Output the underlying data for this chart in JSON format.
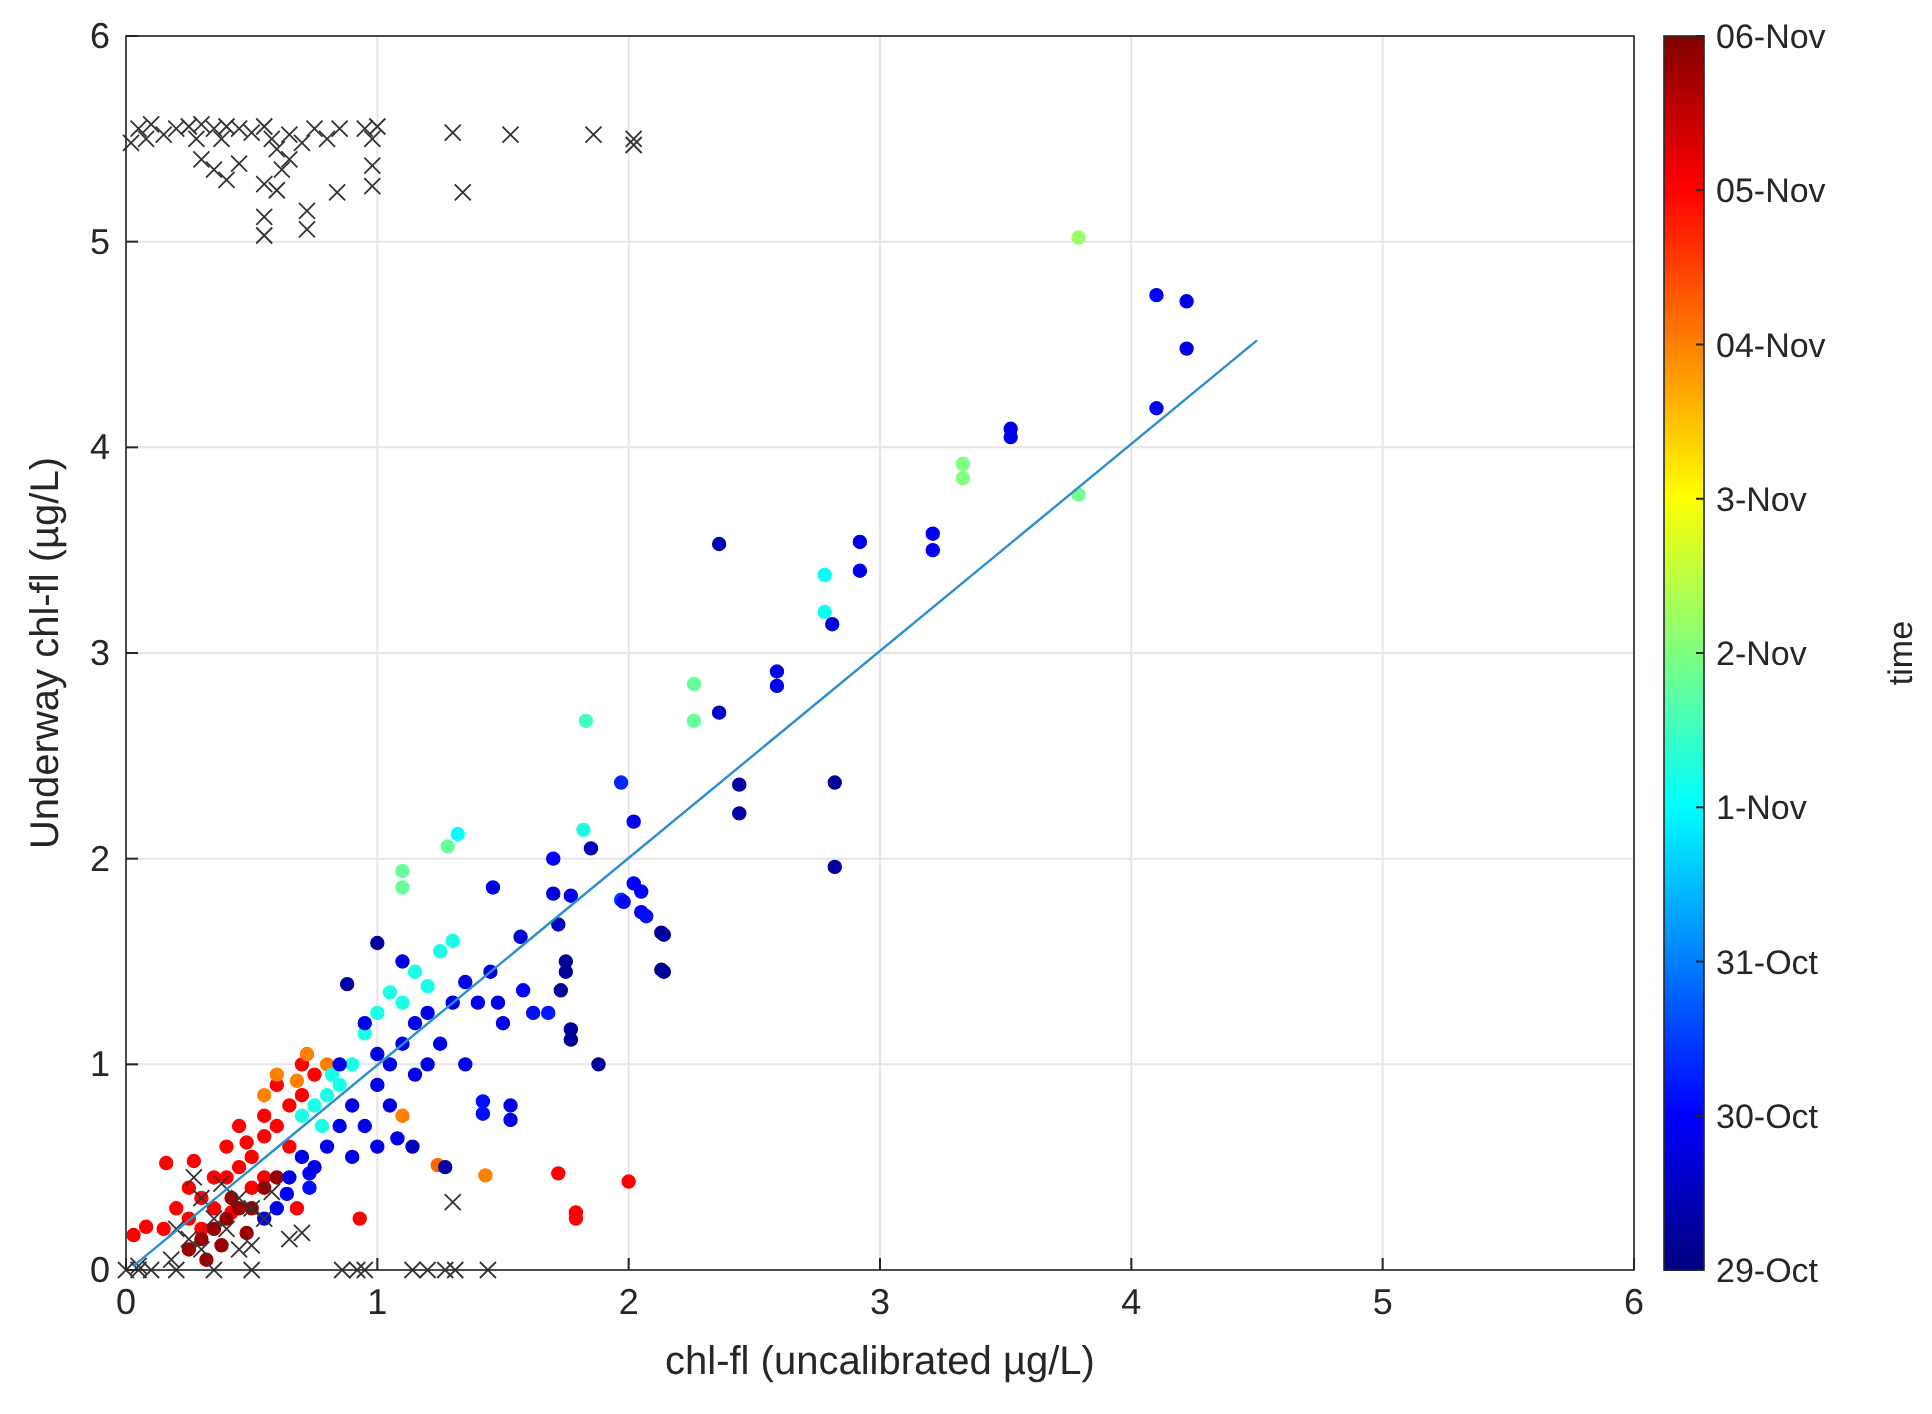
{
  "chart_data": {
    "type": "scatter",
    "xlabel": "chl-fl (uncalibrated µg/L)",
    "ylabel": "Underway chl-fl (µg/L)",
    "clabel": "time",
    "xlim": [
      0,
      6
    ],
    "ylim": [
      0,
      6
    ],
    "xticks": [
      0,
      1,
      2,
      3,
      4,
      5,
      6
    ],
    "yticks": [
      0,
      1,
      2,
      3,
      4,
      5,
      6
    ],
    "grid": true,
    "clim": [
      0,
      8
    ],
    "cticks": [
      {
        "value": 0,
        "label": "29-Oct"
      },
      {
        "value": 1,
        "label": "30-Oct"
      },
      {
        "value": 2,
        "label": "31-Oct"
      },
      {
        "value": 3,
        "label": "1-Nov"
      },
      {
        "value": 4,
        "label": "2-Nov"
      },
      {
        "value": 5,
        "label": "3-Nov"
      },
      {
        "value": 6,
        "label": "04-Nov"
      },
      {
        "value": 7,
        "label": "05-Nov"
      },
      {
        "value": 8,
        "label": "06-Nov"
      }
    ],
    "series": [
      {
        "marker": "circle",
        "x": [
          3.79,
          4.1,
          4.22,
          4.22,
          4.1,
          3.52,
          3.52,
          3.33,
          3.33,
          3.79,
          3.21,
          3.21,
          2.92,
          2.92,
          2.36,
          2.78,
          2.78,
          2.81,
          2.26,
          2.26,
          2.59,
          2.59,
          2.36,
          2.44,
          2.44,
          2.82,
          2.82,
          1.97,
          2.02,
          2.02,
          1.97,
          2.05,
          2.05,
          2.14,
          1.83,
          1.82,
          1.32,
          1.28,
          1.1,
          1.1,
          1.85,
          1.7,
          2.14,
          1.0,
          0.88,
          1.46,
          1.7,
          1.77,
          1.57,
          1.72,
          1.98,
          2.07,
          2.13,
          2.13,
          1.75,
          1.75,
          1.73,
          1.77,
          1.77,
          1.88,
          1.68,
          1.62,
          1.58,
          1.48,
          1.42,
          1.42,
          1.53,
          1.53,
          1.72,
          2.0,
          1.79,
          1.79,
          1.43,
          1.24,
          1.27,
          1.1,
          1.14,
          1.08,
          0.93,
          0.68,
          0.73,
          0.73,
          0.64,
          0.27,
          0.16,
          0.03,
          0.08,
          0.15,
          0.25,
          0.3,
          0.35,
          0.4,
          0.45,
          0.5,
          0.55,
          0.6,
          0.65,
          0.7,
          0.4,
          0.45,
          0.55,
          0.6,
          0.35,
          0.3,
          0.5,
          0.65,
          0.7,
          0.2,
          0.25,
          0.55,
          0.75,
          0.42,
          0.48,
          0.25,
          0.3,
          0.35,
          0.4,
          0.45,
          0.5,
          0.55,
          0.38,
          0.48,
          0.42,
          0.6,
          0.32,
          0.72,
          0.6,
          0.8,
          0.68,
          0.55,
          0.75,
          0.7,
          0.8,
          0.85,
          0.95,
          1.0,
          1.05,
          1.15,
          1.25,
          1.3,
          1.1,
          0.9,
          1.2,
          0.78,
          0.82,
          0.8,
          0.85,
          0.9,
          0.95,
          1.0,
          1.05,
          1.1,
          1.15,
          1.2,
          1.25,
          1.3,
          1.35,
          1.4,
          0.9,
          1.0,
          0.75,
          0.7,
          0.65,
          1.05,
          1.15,
          1.2,
          1.1,
          1.0,
          0.85,
          0.95,
          1.45,
          1.5,
          1.35,
          0.6,
          0.55
        ],
        "values": [
          5.02,
          4.74,
          4.71,
          4.48,
          4.19,
          4.09,
          4.05,
          3.92,
          3.85,
          3.77,
          3.58,
          3.5,
          3.54,
          3.4,
          3.53,
          3.38,
          3.2,
          3.14,
          2.85,
          2.67,
          2.91,
          2.84,
          2.71,
          2.36,
          2.22,
          2.37,
          1.96,
          2.37,
          2.18,
          1.88,
          1.8,
          1.84,
          1.74,
          1.63,
          2.67,
          2.14,
          2.12,
          2.06,
          1.94,
          1.86,
          2.05,
          2.0,
          1.45,
          1.59,
          1.39,
          1.86,
          1.83,
          1.82,
          1.62,
          1.68,
          1.79,
          1.72,
          1.64,
          1.46,
          1.5,
          1.45,
          1.36,
          1.17,
          1.12,
          1.0,
          1.25,
          1.25,
          1.36,
          1.3,
          0.82,
          0.76,
          0.8,
          0.73,
          0.47,
          0.43,
          0.25,
          0.28,
          0.46,
          0.51,
          0.5,
          0.75,
          0.6,
          0.64,
          0.25,
          0.3,
          0.47,
          0.4,
          0.37,
          0.53,
          0.52,
          0.17,
          0.21,
          0.2,
          0.25,
          0.35,
          0.3,
          0.45,
          0.5,
          0.55,
          0.65,
          0.7,
          0.8,
          0.85,
          0.6,
          0.7,
          0.75,
          0.9,
          0.45,
          0.2,
          0.4,
          0.6,
          1.0,
          0.3,
          0.4,
          0.45,
          0.95,
          0.28,
          0.62,
          0.1,
          0.15,
          0.2,
          0.25,
          0.3,
          0.3,
          0.4,
          0.12,
          0.18,
          0.35,
          0.45,
          0.05,
          1.05,
          0.95,
          1.0,
          0.92,
          0.85,
          0.8,
          0.75,
          0.85,
          0.9,
          1.15,
          1.25,
          1.35,
          1.45,
          1.55,
          1.6,
          1.3,
          1.0,
          1.38,
          0.7,
          0.95,
          0.6,
          0.7,
          0.8,
          0.7,
          0.9,
          1.0,
          1.1,
          1.2,
          1.25,
          1.1,
          1.3,
          1.4,
          1.3,
          0.55,
          0.6,
          0.5,
          0.55,
          0.45,
          0.8,
          0.95,
          1.0,
          1.5,
          1.05,
          1.0,
          1.2,
          1.45,
          1.2,
          1.0,
          0.3,
          0.25
        ],
        "cvalues": [
          4.2,
          1.0,
          0.8,
          0.8,
          0.9,
          0.8,
          0.8,
          4.0,
          4.0,
          3.9,
          0.9,
          0.9,
          0.8,
          0.8,
          0.4,
          3.0,
          3.1,
          0.7,
          3.8,
          3.8,
          0.8,
          0.8,
          0.6,
          0.3,
          0.3,
          0.2,
          0.2,
          1.3,
          0.9,
          0.9,
          1.4,
          1.0,
          1.0,
          0.2,
          3.5,
          3.2,
          3.0,
          3.8,
          3.8,
          3.8,
          0.5,
          1.0,
          0.2,
          0.2,
          0.3,
          0.8,
          0.7,
          0.8,
          0.7,
          0.5,
          1.0,
          1.1,
          0.2,
          0.2,
          0.2,
          0.2,
          0.2,
          0.2,
          0.2,
          0.2,
          1.2,
          1.1,
          1.0,
          0.8,
          1.1,
          1.1,
          0.8,
          0.8,
          7.0,
          7.0,
          7.0,
          7.0,
          6.0,
          6.2,
          0.3,
          6.0,
          0.5,
          0.8,
          7.0,
          7.0,
          1.0,
          1.1,
          1.0,
          7.0,
          7.0,
          7.0,
          7.0,
          7.0,
          7.0,
          7.0,
          7.0,
          7.0,
          7.0,
          7.0,
          7.0,
          7.0,
          7.0,
          7.0,
          7.0,
          7.0,
          7.0,
          7.0,
          7.0,
          7.0,
          7.0,
          7.0,
          7.0,
          7.0,
          7.0,
          7.0,
          7.0,
          7.0,
          7.0,
          7.8,
          7.8,
          7.8,
          7.8,
          7.8,
          7.8,
          7.8,
          7.8,
          7.8,
          7.8,
          7.8,
          7.8,
          6.0,
          6.0,
          6.0,
          6.0,
          6.0,
          3.2,
          3.2,
          3.2,
          3.2,
          3.2,
          3.2,
          3.2,
          3.2,
          3.2,
          3.2,
          3.2,
          3.2,
          3.2,
          3.2,
          3.2,
          0.8,
          0.8,
          0.8,
          0.8,
          0.8,
          0.8,
          0.8,
          0.8,
          0.8,
          0.8,
          0.8,
          0.8,
          0.8,
          0.8,
          0.8,
          0.8,
          0.8,
          0.8,
          0.8,
          0.8,
          0.8,
          0.8,
          0.8,
          0.8,
          0.8,
          0.8,
          0.8,
          0.8,
          0.8,
          0.8
        ],
        "colors": [
          "#99ff66",
          "#0000ff",
          "#0000e6",
          "#0000e6",
          "#0000f2",
          "#0000e6",
          "#0000e6",
          "#80ff80",
          "#80ff80",
          "#73ff8c",
          "#0000f2",
          "#0000f2",
          "#0000e6",
          "#0000e6",
          "#0000b3",
          "#00ffff",
          "#0dfff2",
          "#0000d9",
          "#66ff99",
          "#66ff99",
          "#0000e6",
          "#0000e6",
          "#0000cc",
          "#0000a6",
          "#0000a6",
          "#000099",
          "#000099",
          "#0026ff",
          "#0000f2",
          "#0000f2",
          "#0033ff",
          "#0000ff",
          "#0000ff",
          "#000099",
          "#40ffbf",
          "#1affe6",
          "#00ffff",
          "#66ff99",
          "#66ff99",
          "#66ff99",
          "#0000bf",
          "#0000ff",
          "#000099",
          "#000099",
          "#0000a6",
          "#0000e6",
          "#0000d9",
          "#0000e6",
          "#0000d9",
          "#0000bf",
          "#0000ff",
          "#000dff",
          "#000099",
          "#000099",
          "#000099",
          "#000099",
          "#000099",
          "#000099",
          "#000099",
          "#000099",
          "#001aff",
          "#000dff",
          "#0000ff",
          "#0000e6",
          "#000dff",
          "#000dff",
          "#0000e6",
          "#0000e6",
          "#ff0000",
          "#ff0000",
          "#ff0000",
          "#ff0000",
          "#ff8000",
          "#ff6600",
          "#0000a6",
          "#ff8000",
          "#0000bf",
          "#0000e6",
          "#ff0000",
          "#ff0000",
          "#0000ff",
          "#000dff",
          "#0000ff",
          "#ff0000",
          "#ff0000",
          "#ff0000",
          "#ff0000",
          "#ff0000",
          "#ff0000",
          "#ff0000",
          "#ff0000",
          "#ff0000",
          "#ff0000",
          "#ff0000",
          "#ff0000",
          "#ff0000",
          "#ff0000",
          "#ff0000",
          "#ff0000",
          "#ff0000",
          "#ff0000",
          "#ff0000",
          "#ff0000",
          "#ff0000",
          "#ff0000",
          "#ff0000",
          "#ff0000",
          "#ff0000",
          "#ff0000",
          "#ff0000",
          "#ff0000",
          "#ff0000",
          "#ff0000",
          "#990000",
          "#990000",
          "#990000",
          "#990000",
          "#990000",
          "#990000",
          "#990000",
          "#990000",
          "#990000",
          "#990000",
          "#990000",
          "#990000",
          "#ff8000",
          "#ff8000",
          "#ff8000",
          "#ff8000",
          "#ff8000",
          "#1affe6",
          "#1affe6",
          "#1affe6",
          "#1affe6",
          "#1affe6",
          "#1affe6",
          "#1affe6",
          "#1affe6",
          "#1affe6",
          "#1affe6",
          "#1affe6",
          "#1affe6",
          "#1affe6",
          "#1affe6",
          "#1affe6",
          "#0000e6",
          "#0000e6",
          "#0000e6",
          "#0000e6",
          "#0000e6",
          "#0000e6",
          "#0000e6",
          "#0000e6",
          "#0000e6",
          "#0000e6",
          "#0000e6",
          "#0000e6",
          "#0000e6",
          "#0000e6",
          "#0000e6",
          "#0000e6",
          "#0000e6",
          "#0000e6",
          "#0000e6",
          "#0000e6",
          "#0000e6",
          "#0000e6",
          "#0000e6",
          "#0000e6",
          "#0000e6",
          "#0000e6",
          "#0000e6",
          "#0000e6",
          "#0000e6",
          "#0000e6"
        ]
      },
      {
        "marker": "cross",
        "color": "#333333",
        "x": [
          0.0,
          0.05,
          0.1,
          0.2,
          0.35,
          0.5,
          0.86,
          0.92,
          0.95,
          1.14,
          1.2,
          1.27,
          1.31,
          1.44,
          0.18,
          0.25,
          0.3,
          0.35,
          0.4,
          0.45,
          0.5,
          0.2,
          0.55,
          0.3,
          0.38,
          0.45,
          0.5,
          0.58,
          0.65,
          0.7,
          0.27,
          1.3,
          0.05,
          0.05,
          0.02,
          0.08,
          0.1,
          0.15,
          0.2,
          0.25,
          0.28,
          0.3,
          0.35,
          0.38,
          0.4,
          0.45,
          0.5,
          0.55,
          0.58,
          0.6,
          0.65,
          0.7,
          0.75,
          0.8,
          0.3,
          0.35,
          0.4,
          0.45,
          0.55,
          0.6,
          0.62,
          0.65,
          0.85,
          0.95,
          1.0,
          0.98,
          1.3,
          1.53,
          1.86,
          2.02,
          2.02,
          0.55,
          0.55,
          0.72,
          0.72,
          0.84,
          0.98,
          0.98,
          1.34
        ],
        "values": [
          0,
          0,
          0,
          0,
          0,
          0,
          0,
          0,
          0,
          0,
          0,
          0,
          0,
          0,
          0.05,
          0.15,
          0.1,
          0.25,
          0.2,
          0.35,
          0.3,
          0.2,
          0.25,
          0.35,
          0.42,
          0.1,
          0.12,
          0.38,
          0.15,
          0.18,
          0.45,
          0.33,
          0.02,
          5.55,
          5.48,
          5.5,
          5.57,
          5.52,
          5.55,
          5.56,
          5.5,
          5.57,
          5.55,
          5.5,
          5.56,
          5.55,
          5.53,
          5.56,
          5.5,
          5.45,
          5.52,
          5.48,
          5.55,
          5.5,
          5.4,
          5.35,
          5.3,
          5.38,
          5.28,
          5.25,
          5.35,
          5.4,
          5.55,
          5.55,
          5.56,
          5.5,
          5.53,
          5.52,
          5.52,
          5.5,
          5.47,
          5.12,
          5.03,
          5.15,
          5.06,
          5.24,
          5.37,
          5.27,
          5.24
        ]
      },
      {
        "type": "line",
        "color": "#2a8fd0",
        "line_style": "solid",
        "x": [
          0.03,
          4.5
        ],
        "values": [
          0.02,
          4.52
        ]
      }
    ]
  }
}
